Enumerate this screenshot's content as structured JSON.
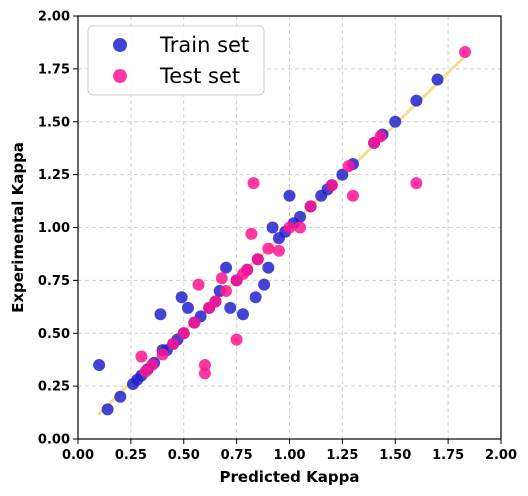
{
  "chart_data": {
    "type": "scatter",
    "xlabel": "Predicted Kappa",
    "ylabel": "Experimental Kappa",
    "xlim": [
      0.0,
      2.0
    ],
    "ylim": [
      0.0,
      2.0
    ],
    "x_ticks": [
      "0.00",
      "0.25",
      "0.50",
      "0.75",
      "1.00",
      "1.25",
      "1.50",
      "1.75",
      "2.00"
    ],
    "y_ticks": [
      "0.00",
      "0.25",
      "0.50",
      "0.75",
      "1.00",
      "1.25",
      "1.50",
      "1.75",
      "2.00"
    ],
    "grid": true,
    "legend_position": "top-left",
    "fit_line": {
      "x": [
        0.1,
        1.83
      ],
      "y": [
        0.12,
        1.81
      ],
      "color": "#f0e08c"
    },
    "series": [
      {
        "name": "Train set",
        "color": "#2222cc",
        "points": [
          [
            0.1,
            0.35
          ],
          [
            0.14,
            0.14
          ],
          [
            0.2,
            0.2
          ],
          [
            0.26,
            0.26
          ],
          [
            0.28,
            0.28
          ],
          [
            0.3,
            0.3
          ],
          [
            0.33,
            0.33
          ],
          [
            0.36,
            0.36
          ],
          [
            0.39,
            0.59
          ],
          [
            0.4,
            0.42
          ],
          [
            0.42,
            0.42
          ],
          [
            0.45,
            0.45
          ],
          [
            0.47,
            0.47
          ],
          [
            0.49,
            0.67
          ],
          [
            0.5,
            0.5
          ],
          [
            0.52,
            0.62
          ],
          [
            0.55,
            0.55
          ],
          [
            0.58,
            0.58
          ],
          [
            0.62,
            0.62
          ],
          [
            0.65,
            0.65
          ],
          [
            0.67,
            0.7
          ],
          [
            0.7,
            0.81
          ],
          [
            0.72,
            0.62
          ],
          [
            0.75,
            0.75
          ],
          [
            0.78,
            0.59
          ],
          [
            0.8,
            0.8
          ],
          [
            0.84,
            0.67
          ],
          [
            0.85,
            0.85
          ],
          [
            0.88,
            0.73
          ],
          [
            0.9,
            0.81
          ],
          [
            0.92,
            1.0
          ],
          [
            0.95,
            0.95
          ],
          [
            0.98,
            0.98
          ],
          [
            1.0,
            1.15
          ],
          [
            1.02,
            1.02
          ],
          [
            1.05,
            1.05
          ],
          [
            1.1,
            1.1
          ],
          [
            1.15,
            1.15
          ],
          [
            1.18,
            1.18
          ],
          [
            1.2,
            1.2
          ],
          [
            1.25,
            1.25
          ],
          [
            1.3,
            1.3
          ],
          [
            1.4,
            1.4
          ],
          [
            1.44,
            1.44
          ],
          [
            1.5,
            1.5
          ],
          [
            1.6,
            1.6
          ],
          [
            1.7,
            1.7
          ]
        ]
      },
      {
        "name": "Test set",
        "color": "#ff1493",
        "points": [
          [
            0.3,
            0.39
          ],
          [
            0.32,
            0.32
          ],
          [
            0.35,
            0.35
          ],
          [
            0.4,
            0.4
          ],
          [
            0.45,
            0.45
          ],
          [
            0.5,
            0.5
          ],
          [
            0.55,
            0.55
          ],
          [
            0.57,
            0.73
          ],
          [
            0.6,
            0.35
          ],
          [
            0.6,
            0.31
          ],
          [
            0.62,
            0.62
          ],
          [
            0.65,
            0.65
          ],
          [
            0.68,
            0.76
          ],
          [
            0.7,
            0.7
          ],
          [
            0.75,
            0.47
          ],
          [
            0.75,
            0.75
          ],
          [
            0.78,
            0.78
          ],
          [
            0.8,
            0.8
          ],
          [
            0.82,
            0.97
          ],
          [
            0.83,
            1.21
          ],
          [
            0.85,
            0.85
          ],
          [
            0.9,
            0.9
          ],
          [
            0.95,
            0.89
          ],
          [
            1.0,
            1.0
          ],
          [
            1.05,
            1.0
          ],
          [
            1.1,
            1.1
          ],
          [
            1.2,
            1.2
          ],
          [
            1.28,
            1.29
          ],
          [
            1.3,
            1.15
          ],
          [
            1.4,
            1.4
          ],
          [
            1.43,
            1.43
          ],
          [
            1.6,
            1.21
          ],
          [
            1.83,
            1.83
          ]
        ]
      }
    ]
  }
}
